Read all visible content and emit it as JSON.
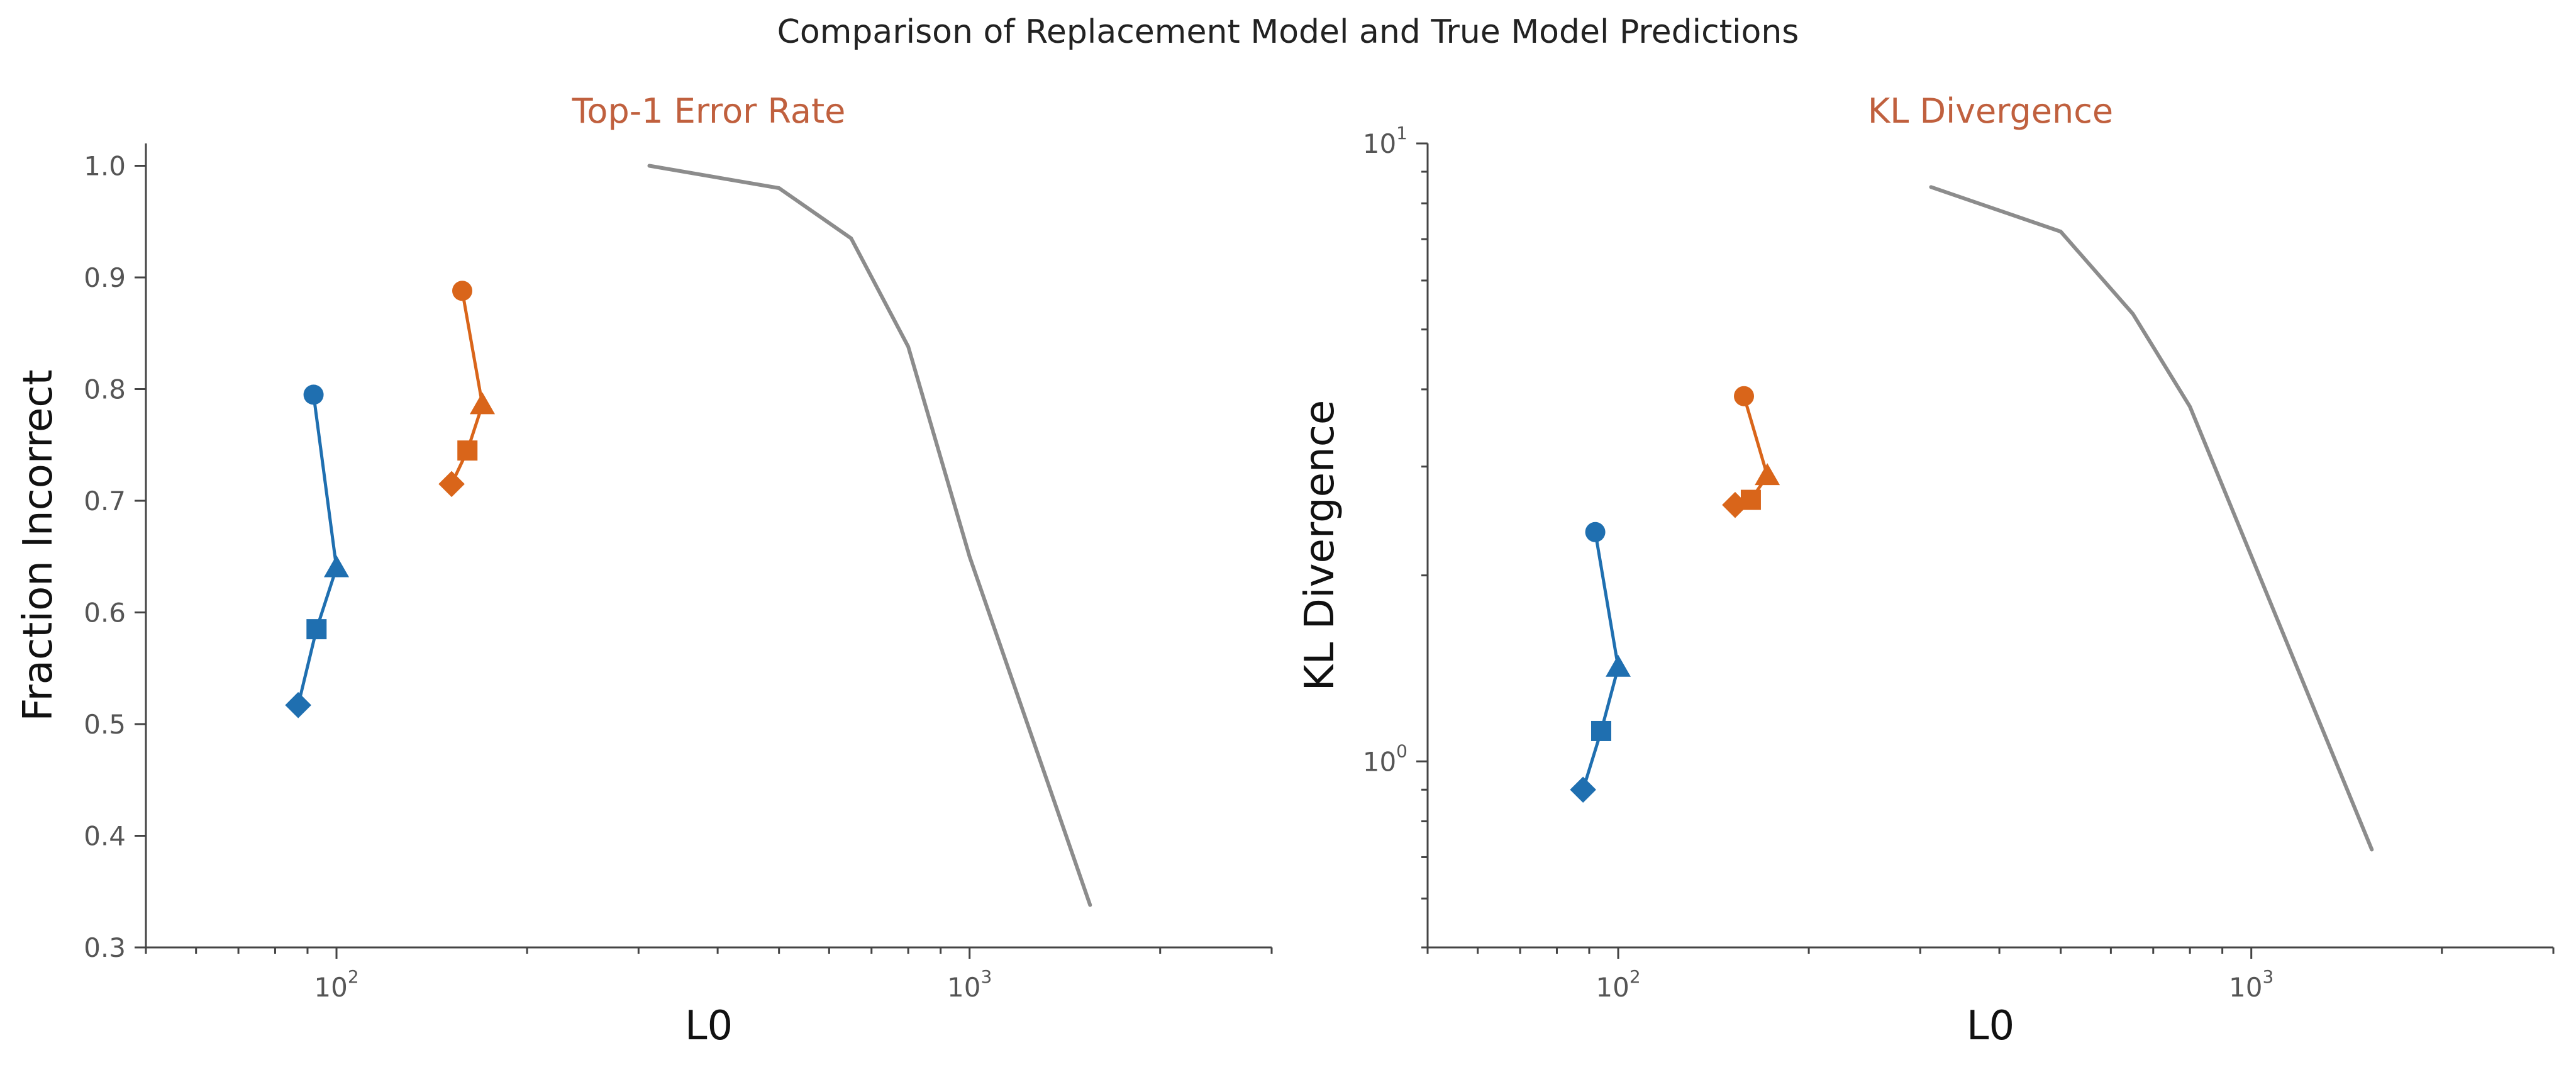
{
  "figure": {
    "title": "Comparison of Replacement Model and True Model Predictions",
    "subtitle_color": "#c0603e"
  },
  "chart_data": [
    {
      "type": "line",
      "title": "Top-1 Error Rate",
      "xlabel": "L0",
      "ylabel": "Fraction Incorrect",
      "xscale": "log",
      "yscale": "linear",
      "xlim": [
        50,
        3000
      ],
      "ylim": [
        0.3,
        1.02
      ],
      "yticks": [
        0.3,
        0.4,
        0.5,
        0.6,
        0.7,
        0.8,
        0.9,
        1.0
      ],
      "ytick_labels": [
        "0.3",
        "0.4",
        "0.5",
        "0.6",
        "0.7",
        "0.8",
        "0.9",
        "1.0"
      ],
      "xticks": [
        100,
        1000
      ],
      "xtick_labels": [
        {
          "base": "10",
          "exp": "2"
        },
        {
          "base": "10",
          "exp": "3"
        }
      ],
      "grid": false,
      "series": [
        {
          "color": "#1f6fb0",
          "markers": [
            "circle",
            "triangle",
            "square",
            "diamond"
          ],
          "x": [
            92,
            100,
            93,
            87
          ],
          "y": [
            0.795,
            0.64,
            0.585,
            0.517
          ]
        },
        {
          "color": "#d9651a",
          "markers": [
            "circle",
            "triangle",
            "square",
            "diamond"
          ],
          "x": [
            158,
            170,
            161,
            152
          ],
          "y": [
            0.888,
            0.786,
            0.745,
            0.715
          ]
        },
        {
          "color": "#8c8c8c",
          "markers": [],
          "x": [
            312,
            500,
            650,
            800,
            1000,
            1550
          ],
          "y": [
            1.0,
            0.98,
            0.935,
            0.838,
            0.65,
            0.338
          ]
        }
      ]
    },
    {
      "type": "line",
      "title": "KL Divergence",
      "xlabel": "L0",
      "ylabel": "KL Divergence",
      "xscale": "log",
      "yscale": "log",
      "xlim": [
        50,
        3000
      ],
      "ylim": [
        0.5,
        10
      ],
      "yticks": [
        1,
        10
      ],
      "ytick_labels": [
        {
          "base": "10",
          "exp": "0"
        },
        {
          "base": "10",
          "exp": "1"
        }
      ],
      "xticks": [
        100,
        1000
      ],
      "xtick_labels": [
        {
          "base": "10",
          "exp": "2"
        },
        {
          "base": "10",
          "exp": "3"
        }
      ],
      "grid": false,
      "series": [
        {
          "color": "#1f6fb0",
          "markers": [
            "circle",
            "triangle",
            "square",
            "diamond"
          ],
          "x": [
            92,
            100,
            94,
            88
          ],
          "y": [
            2.35,
            1.42,
            1.12,
            0.9
          ]
        },
        {
          "color": "#d9651a",
          "markers": [
            "circle",
            "triangle",
            "square",
            "diamond"
          ],
          "x": [
            158,
            172,
            162,
            153
          ],
          "y": [
            3.9,
            2.9,
            2.65,
            2.6
          ]
        },
        {
          "color": "#8c8c8c",
          "markers": [],
          "x": [
            312,
            500,
            650,
            800,
            1000,
            1550
          ],
          "y": [
            8.5,
            7.2,
            5.3,
            3.75,
            2.15,
            0.72
          ]
        }
      ]
    }
  ]
}
